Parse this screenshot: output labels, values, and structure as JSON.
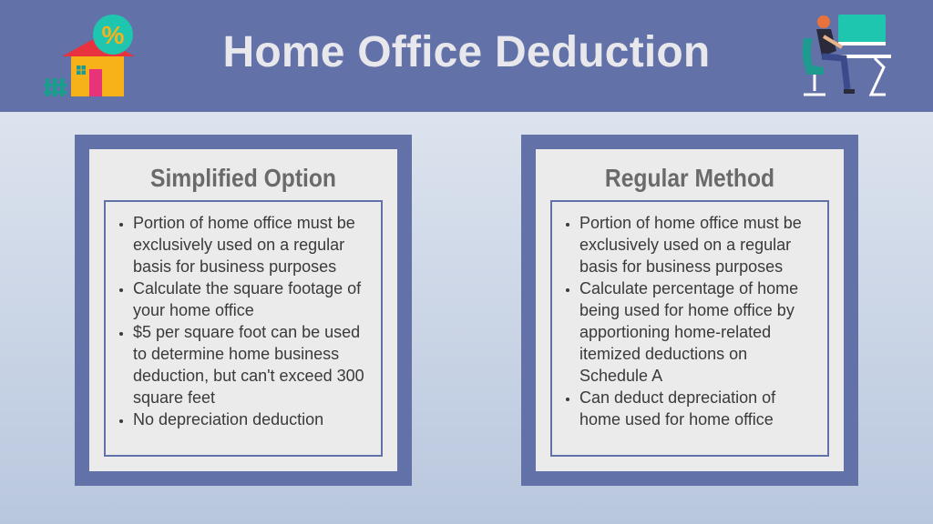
{
  "header": {
    "title": "Home Office Deduction",
    "icons": {
      "left": "house-percent-icon",
      "right": "desk-worker-icon"
    }
  },
  "cards": [
    {
      "title": "Simplified Option",
      "items": [
        "Portion of home office must be exclusively used on a regular basis for business purposes",
        "Calculate the square footage of your home office",
        "$5 per square foot can be used to determine home business deduction, but can't exceed 300 square feet",
        "No depreciation deduction"
      ]
    },
    {
      "title": "Regular Method",
      "items": [
        "Portion of home office must be exclusively used on a regular basis for business purposes",
        "Calculate percentage of home being used for home office by apportioning home-related itemized deductions on Schedule A",
        "Can deduct depreciation of home used for home office"
      ]
    }
  ],
  "colors": {
    "header_bg": "#6271a8",
    "card_frame": "#6271a8",
    "card_inner": "#ebebeb",
    "title_text": "#e8e8ec",
    "card_title_text": "#6a6a6a",
    "body_text": "#3a3a3a"
  }
}
